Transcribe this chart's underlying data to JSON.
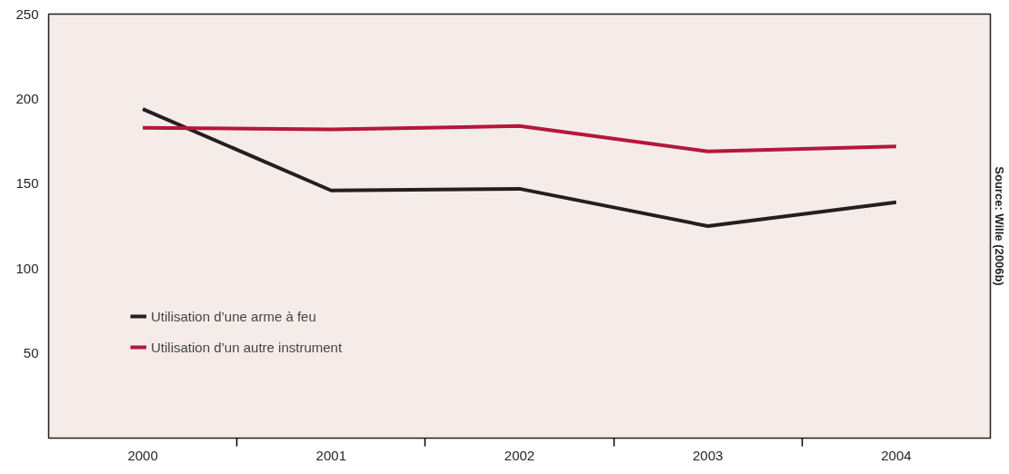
{
  "chart_data": {
    "type": "line",
    "x": [
      2000,
      2001,
      2002,
      2003,
      2004
    ],
    "series": [
      {
        "name": "Utilisation d’une arme à feu",
        "color": "#231f20",
        "values": [
          194,
          146,
          147,
          125,
          139
        ]
      },
      {
        "name": "Utilisation d’un autre instrument",
        "color": "#b5173a",
        "values": [
          183,
          182,
          184,
          169,
          172
        ]
      }
    ],
    "xlim": [
      1999.5,
      2004.5
    ],
    "xticks": [
      2000,
      {
        "value": 2000.5,
        "label": null
      },
      2001,
      {
        "value": 2001.5,
        "label": null
      },
      2002,
      {
        "value": 2002.5,
        "label": null
      },
      2003,
      {
        "value": 2003.5,
        "label": null
      },
      2004
    ],
    "ylim": [
      0,
      250
    ],
    "yticks": [
      50,
      100,
      150,
      200,
      250
    ],
    "grid": false,
    "legend": "bottom left",
    "marker": "none",
    "line_style": "solid",
    "annotations": [
      "Source: Wille (2006b)"
    ]
  }
}
